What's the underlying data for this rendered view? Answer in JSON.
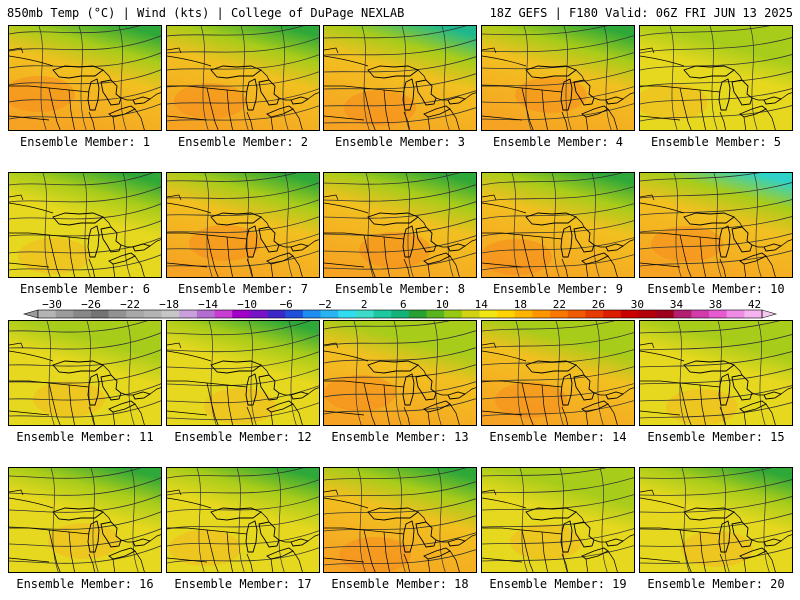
{
  "header": {
    "left": "850mb Temp (°C) | Wind (kts) | College of DuPage NEXLAB",
    "right": "18Z GEFS | F180 Valid: 06Z FRI JUN 13 2025"
  },
  "panels": [
    {
      "label": "Ensemble Member: 1",
      "base": "orange",
      "north": "green"
    },
    {
      "label": "Ensemble Member: 2",
      "base": "orange",
      "north": "green"
    },
    {
      "label": "Ensemble Member: 3",
      "base": "orange",
      "north": "teal"
    },
    {
      "label": "Ensemble Member: 4",
      "base": "orange",
      "north": "green"
    },
    {
      "label": "Ensemble Member: 5",
      "base": "yellow",
      "north": "lime"
    },
    {
      "label": "Ensemble Member: 6",
      "base": "yellow",
      "north": "green"
    },
    {
      "label": "Ensemble Member: 7",
      "base": "orange",
      "north": "green"
    },
    {
      "label": "Ensemble Member: 8",
      "base": "orange",
      "north": "green"
    },
    {
      "label": "Ensemble Member: 9",
      "base": "orange",
      "north": "green"
    },
    {
      "label": "Ensemble Member: 10",
      "base": "orange",
      "north": "cyan"
    },
    {
      "label": "Ensemble Member: 11",
      "base": "yellow",
      "north": "lime"
    },
    {
      "label": "Ensemble Member: 12",
      "base": "yellow",
      "north": "green"
    },
    {
      "label": "Ensemble Member: 13",
      "base": "orange",
      "north": "lime"
    },
    {
      "label": "Ensemble Member: 14",
      "base": "orange",
      "north": "lime"
    },
    {
      "label": "Ensemble Member: 15",
      "base": "yellow",
      "north": "lime"
    },
    {
      "label": "Ensemble Member: 16",
      "base": "yellow",
      "north": "green"
    },
    {
      "label": "Ensemble Member: 17",
      "base": "yellow",
      "north": "green"
    },
    {
      "label": "Ensemble Member: 18",
      "base": "orange",
      "north": "green"
    },
    {
      "label": "Ensemble Member: 19",
      "base": "yellow",
      "north": "lime"
    },
    {
      "label": "Ensemble Member: 20",
      "base": "yellow",
      "north": "green"
    }
  ],
  "colorbar": {
    "ticks": [
      "−30",
      "−26",
      "−22",
      "−18",
      "−14",
      "−10",
      "−6",
      "−2",
      "2",
      "6",
      "10",
      "14",
      "18",
      "22",
      "26",
      "30",
      "34",
      "38",
      "42"
    ],
    "colors": [
      "#b4b4b4",
      "#9c9c9c",
      "#888888",
      "#747474",
      "#929292",
      "#a8a8a8",
      "#b4b4b4",
      "#c6c6c6",
      "#c8a0dc",
      "#b46ed2",
      "#c83cd2",
      "#a000c8",
      "#7814c8",
      "#3c28c8",
      "#1e50dc",
      "#1e8cf0",
      "#28b4f0",
      "#32dcf0",
      "#3cdcc8",
      "#1ec8a0",
      "#14b478",
      "#28a032",
      "#5ab41e",
      "#96c814",
      "#d2d214",
      "#f0e614",
      "#ffd200",
      "#ffb400",
      "#ff9600",
      "#fa7800",
      "#f05a00",
      "#e63c00",
      "#dc1e00",
      "#c80000",
      "#b4000a",
      "#a0001e",
      "#b41e6e",
      "#d23caa",
      "#e65ad2",
      "#f08ce6",
      "#f5b4f0"
    ],
    "left_arrow_color": "#9a9a9a",
    "right_arrow_color": "#f5c8f0"
  },
  "palette": {
    "orange": "#f6a323",
    "yellow": "#e6d81e",
    "lime": "#a8cc1a",
    "green": "#2ea838",
    "teal": "#1fb88c",
    "cyan": "#2fd2c8"
  }
}
